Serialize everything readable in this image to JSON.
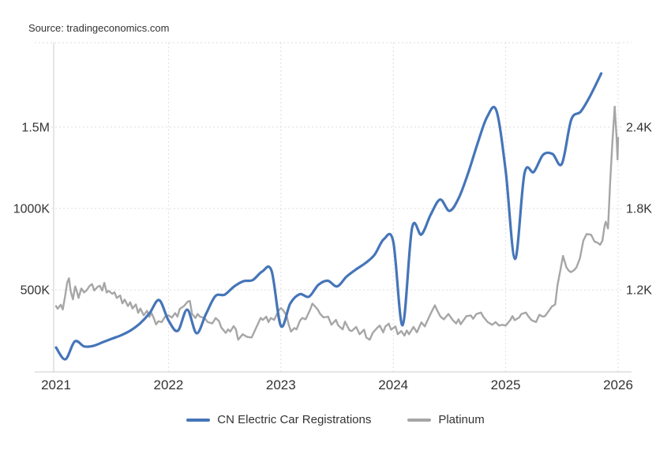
{
  "source_text": "Source: tradingeconomics.com",
  "colors": {
    "cn_line": "#4575b9",
    "platinum_line": "#a6a6a6",
    "text": "#333333",
    "grid": "#dedede",
    "axis": "#cccccc",
    "background": "#ffffff"
  },
  "chart_data": {
    "type": "line",
    "title": "",
    "grid": true,
    "legend_position": "bottom",
    "xlim": [
      2020.98,
      2026.04
    ],
    "ylim_left_thousands": [
      0,
      2020
    ],
    "ylim_right_usd": [
      600,
      3025
    ],
    "x_axis": {
      "ticks": [
        {
          "t": 2021,
          "label": "2021"
        },
        {
          "t": 2022,
          "label": "2022"
        },
        {
          "t": 2023,
          "label": "2023"
        },
        {
          "t": 2024,
          "label": "2024"
        },
        {
          "t": 2025,
          "label": "2025"
        },
        {
          "t": 2026,
          "label": "2026"
        }
      ]
    },
    "left_axis": {
      "units": "registrations (thousands)",
      "ticks": [
        {
          "v": 500,
          "label": "500K"
        },
        {
          "v": 1000,
          "label": "1000K"
        },
        {
          "v": 1500,
          "label": "1.5M"
        }
      ]
    },
    "right_axis": {
      "units": "USD/oz",
      "ticks": [
        {
          "v": 1200,
          "label": "1.2K"
        },
        {
          "v": 1800,
          "label": "1.8K"
        },
        {
          "v": 2400,
          "label": "2.4K"
        }
      ]
    },
    "legend": [
      {
        "label": "CN Electric Car Registrations",
        "color": "#4575b9"
      },
      {
        "label": "Platinum",
        "color": "#a6a6a6"
      }
    ],
    "series": [
      {
        "name": "CN Electric Car Registrations",
        "axis": "left",
        "color": "#4575b9",
        "smooth": true,
        "width": 3.2,
        "points": [
          [
            2021.0,
            145
          ],
          [
            2021.083,
            73
          ],
          [
            2021.167,
            183
          ],
          [
            2021.25,
            152
          ],
          [
            2021.333,
            156
          ],
          [
            2021.417,
            178
          ],
          [
            2021.5,
            200
          ],
          [
            2021.583,
            222
          ],
          [
            2021.667,
            252
          ],
          [
            2021.75,
            295
          ],
          [
            2021.833,
            357
          ],
          [
            2021.917,
            437
          ],
          [
            2022.0,
            312
          ],
          [
            2022.083,
            248
          ],
          [
            2022.167,
            378
          ],
          [
            2022.25,
            233
          ],
          [
            2022.333,
            350
          ],
          [
            2022.417,
            461
          ],
          [
            2022.5,
            470
          ],
          [
            2022.583,
            520
          ],
          [
            2022.667,
            553
          ],
          [
            2022.75,
            560
          ],
          [
            2022.833,
            612
          ],
          [
            2022.917,
            617
          ],
          [
            2023.0,
            278
          ],
          [
            2023.083,
            415
          ],
          [
            2023.167,
            473
          ],
          [
            2023.25,
            458
          ],
          [
            2023.333,
            530
          ],
          [
            2023.417,
            556
          ],
          [
            2023.5,
            521
          ],
          [
            2023.583,
            580
          ],
          [
            2023.667,
            625
          ],
          [
            2023.75,
            663
          ],
          [
            2023.833,
            715
          ],
          [
            2023.917,
            812
          ],
          [
            2024.0,
            795
          ],
          [
            2024.083,
            282
          ],
          [
            2024.167,
            880
          ],
          [
            2024.25,
            840
          ],
          [
            2024.333,
            962
          ],
          [
            2024.417,
            1055
          ],
          [
            2024.5,
            985
          ],
          [
            2024.583,
            1065
          ],
          [
            2024.667,
            1220
          ],
          [
            2024.75,
            1400
          ],
          [
            2024.833,
            1560
          ],
          [
            2024.917,
            1602
          ],
          [
            2025.0,
            1230
          ],
          [
            2025.083,
            690
          ],
          [
            2025.167,
            1215
          ],
          [
            2025.25,
            1225
          ],
          [
            2025.333,
            1330
          ],
          [
            2025.417,
            1335
          ],
          [
            2025.5,
            1275
          ],
          [
            2025.583,
            1545
          ],
          [
            2025.667,
            1595
          ],
          [
            2025.75,
            1690
          ],
          [
            2025.85,
            1830
          ]
        ]
      },
      {
        "name": "Platinum",
        "axis": "right",
        "color": "#a6a6a6",
        "smooth": false,
        "width": 2.4,
        "points": [
          [
            2021.0,
            1080
          ],
          [
            2021.014,
            1060
          ],
          [
            2021.042,
            1090
          ],
          [
            2021.06,
            1055
          ],
          [
            2021.08,
            1150
          ],
          [
            2021.1,
            1255
          ],
          [
            2021.115,
            1285
          ],
          [
            2021.13,
            1190
          ],
          [
            2021.15,
            1130
          ],
          [
            2021.17,
            1225
          ],
          [
            2021.185,
            1190
          ],
          [
            2021.2,
            1140
          ],
          [
            2021.225,
            1210
          ],
          [
            2021.25,
            1180
          ],
          [
            2021.27,
            1195
          ],
          [
            2021.3,
            1230
          ],
          [
            2021.32,
            1242
          ],
          [
            2021.34,
            1195
          ],
          [
            2021.37,
            1222
          ],
          [
            2021.39,
            1230
          ],
          [
            2021.41,
            1195
          ],
          [
            2021.43,
            1252
          ],
          [
            2021.45,
            1180
          ],
          [
            2021.47,
            1192
          ],
          [
            2021.5,
            1170
          ],
          [
            2021.52,
            1182
          ],
          [
            2021.54,
            1140
          ],
          [
            2021.57,
            1158
          ],
          [
            2021.59,
            1100
          ],
          [
            2021.61,
            1128
          ],
          [
            2021.64,
            1080
          ],
          [
            2021.66,
            1108
          ],
          [
            2021.68,
            1062
          ],
          [
            2021.71,
            1092
          ],
          [
            2021.73,
            1030
          ],
          [
            2021.75,
            1062
          ],
          [
            2021.78,
            1012
          ],
          [
            2021.81,
            1045
          ],
          [
            2021.83,
            1000
          ],
          [
            2021.85,
            1028
          ],
          [
            2021.87,
            990
          ],
          [
            2021.89,
            945
          ],
          [
            2021.91,
            968
          ],
          [
            2021.94,
            962
          ],
          [
            2021.97,
            1002
          ],
          [
            2022.0,
            1012
          ],
          [
            2022.03,
            995
          ],
          [
            2022.06,
            1028
          ],
          [
            2022.08,
            1002
          ],
          [
            2022.1,
            1058
          ],
          [
            2022.14,
            1082
          ],
          [
            2022.17,
            1112
          ],
          [
            2022.19,
            1118
          ],
          [
            2022.21,
            1022
          ],
          [
            2022.24,
            992
          ],
          [
            2022.26,
            1022
          ],
          [
            2022.28,
            1002
          ],
          [
            2022.32,
            992
          ],
          [
            2022.35,
            962
          ],
          [
            2022.39,
            952
          ],
          [
            2022.42,
            992
          ],
          [
            2022.45,
            968
          ],
          [
            2022.47,
            922
          ],
          [
            2022.51,
            882
          ],
          [
            2022.53,
            908
          ],
          [
            2022.55,
            892
          ],
          [
            2022.58,
            932
          ],
          [
            2022.6,
            908
          ],
          [
            2022.62,
            832
          ],
          [
            2022.66,
            872
          ],
          [
            2022.7,
            852
          ],
          [
            2022.74,
            848
          ],
          [
            2022.77,
            902
          ],
          [
            2022.82,
            992
          ],
          [
            2022.84,
            978
          ],
          [
            2022.87,
            1002
          ],
          [
            2022.89,
            962
          ],
          [
            2022.91,
            992
          ],
          [
            2022.94,
            978
          ],
          [
            2022.98,
            1048
          ],
          [
            2023.0,
            1065
          ],
          [
            2023.02,
            1050
          ],
          [
            2023.05,
            1012
          ],
          [
            2023.07,
            942
          ],
          [
            2023.09,
            892
          ],
          [
            2023.12,
            918
          ],
          [
            2023.14,
            908
          ],
          [
            2023.17,
            972
          ],
          [
            2023.19,
            992
          ],
          [
            2023.22,
            982
          ],
          [
            2023.26,
            1052
          ],
          [
            2023.28,
            1098
          ],
          [
            2023.3,
            1082
          ],
          [
            2023.33,
            1052
          ],
          [
            2023.35,
            1022
          ],
          [
            2023.38,
            996
          ],
          [
            2023.42,
            1002
          ],
          [
            2023.45,
            942
          ],
          [
            2023.49,
            978
          ],
          [
            2023.51,
            938
          ],
          [
            2023.55,
            908
          ],
          [
            2023.57,
            965
          ],
          [
            2023.61,
            902
          ],
          [
            2023.63,
            896
          ],
          [
            2023.67,
            926
          ],
          [
            2023.7,
            872
          ],
          [
            2023.74,
            906
          ],
          [
            2023.76,
            848
          ],
          [
            2023.79,
            832
          ],
          [
            2023.82,
            886
          ],
          [
            2023.86,
            922
          ],
          [
            2023.88,
            936
          ],
          [
            2023.91,
            886
          ],
          [
            2023.93,
            930
          ],
          [
            2023.96,
            950
          ],
          [
            2023.98,
            906
          ],
          [
            2024.02,
            930
          ],
          [
            2024.04,
            872
          ],
          [
            2024.07,
            896
          ],
          [
            2024.1,
            862
          ],
          [
            2024.12,
            900
          ],
          [
            2024.14,
            872
          ],
          [
            2024.18,
            926
          ],
          [
            2024.21,
            886
          ],
          [
            2024.25,
            960
          ],
          [
            2024.28,
            930
          ],
          [
            2024.33,
            1020
          ],
          [
            2024.37,
            1086
          ],
          [
            2024.39,
            1050
          ],
          [
            2024.42,
            1002
          ],
          [
            2024.45,
            982
          ],
          [
            2024.49,
            1022
          ],
          [
            2024.53,
            976
          ],
          [
            2024.56,
            952
          ],
          [
            2024.58,
            982
          ],
          [
            2024.6,
            946
          ],
          [
            2024.65,
            1006
          ],
          [
            2024.69,
            1010
          ],
          [
            2024.71,
            986
          ],
          [
            2024.74,
            1022
          ],
          [
            2024.78,
            1032
          ],
          [
            2024.8,
            1002
          ],
          [
            2024.84,
            962
          ],
          [
            2024.88,
            942
          ],
          [
            2024.91,
            962
          ],
          [
            2024.94,
            936
          ],
          [
            2024.97,
            942
          ],
          [
            2025.0,
            936
          ],
          [
            2025.04,
            976
          ],
          [
            2025.06,
            1006
          ],
          [
            2025.08,
            976
          ],
          [
            2025.12,
            996
          ],
          [
            2025.14,
            1022
          ],
          [
            2025.18,
            1032
          ],
          [
            2025.2,
            1006
          ],
          [
            2025.23,
            976
          ],
          [
            2025.27,
            962
          ],
          [
            2025.3,
            1016
          ],
          [
            2025.33,
            1002
          ],
          [
            2025.35,
            1006
          ],
          [
            2025.39,
            1052
          ],
          [
            2025.41,
            1076
          ],
          [
            2025.44,
            1092
          ],
          [
            2025.46,
            1230
          ],
          [
            2025.49,
            1362
          ],
          [
            2025.51,
            1450
          ],
          [
            2025.54,
            1366
          ],
          [
            2025.56,
            1342
          ],
          [
            2025.58,
            1330
          ],
          [
            2025.61,
            1346
          ],
          [
            2025.63,
            1366
          ],
          [
            2025.66,
            1432
          ],
          [
            2025.69,
            1562
          ],
          [
            2025.72,
            1612
          ],
          [
            2025.76,
            1606
          ],
          [
            2025.79,
            1556
          ],
          [
            2025.82,
            1546
          ],
          [
            2025.84,
            1532
          ],
          [
            2025.86,
            1562
          ],
          [
            2025.88,
            1672
          ],
          [
            2025.89,
            1702
          ],
          [
            2025.91,
            1652
          ],
          [
            2025.93,
            2002
          ],
          [
            2025.95,
            2302
          ],
          [
            2025.97,
            2552
          ],
          [
            2025.985,
            2342
          ],
          [
            2025.995,
            2162
          ],
          [
            2026.0,
            2322
          ]
        ]
      }
    ]
  }
}
